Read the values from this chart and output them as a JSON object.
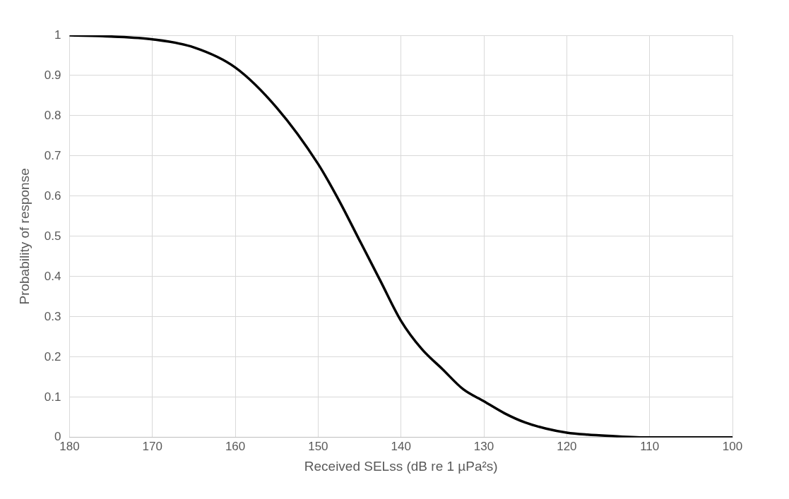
{
  "chart_data": {
    "type": "line",
    "xlabel": "Received SELss (dB re 1 µPa²s)",
    "ylabel": "Probability of response",
    "xlim": [
      180,
      100
    ],
    "xticks": [
      180,
      170,
      160,
      150,
      140,
      130,
      120,
      110,
      100
    ],
    "ylim": [
      0,
      1
    ],
    "yticks": [
      0,
      0.1,
      0.2,
      0.3,
      0.4,
      0.5,
      0.6,
      0.7,
      0.8,
      0.9,
      1
    ],
    "grid": true,
    "legend": false,
    "marker": "none",
    "line_style": "solid",
    "series": [
      {
        "color": "#000000",
        "x": [
          180,
          175,
          170,
          165,
          160,
          155,
          150,
          147.5,
          145,
          142.5,
          140,
          137.5,
          135,
          132.5,
          130,
          127.5,
          125,
          122.5,
          120,
          117.5,
          115,
          110,
          105,
          100
        ],
        "values": [
          1,
          0.997,
          0.99,
          0.97,
          0.92,
          0.82,
          0.68,
          0.59,
          0.49,
          0.39,
          0.29,
          0.22,
          0.17,
          0.12,
          0.09,
          0.06,
          0.037,
          0.022,
          0.012,
          0.007,
          0.004,
          0,
          0,
          0
        ]
      }
    ]
  }
}
